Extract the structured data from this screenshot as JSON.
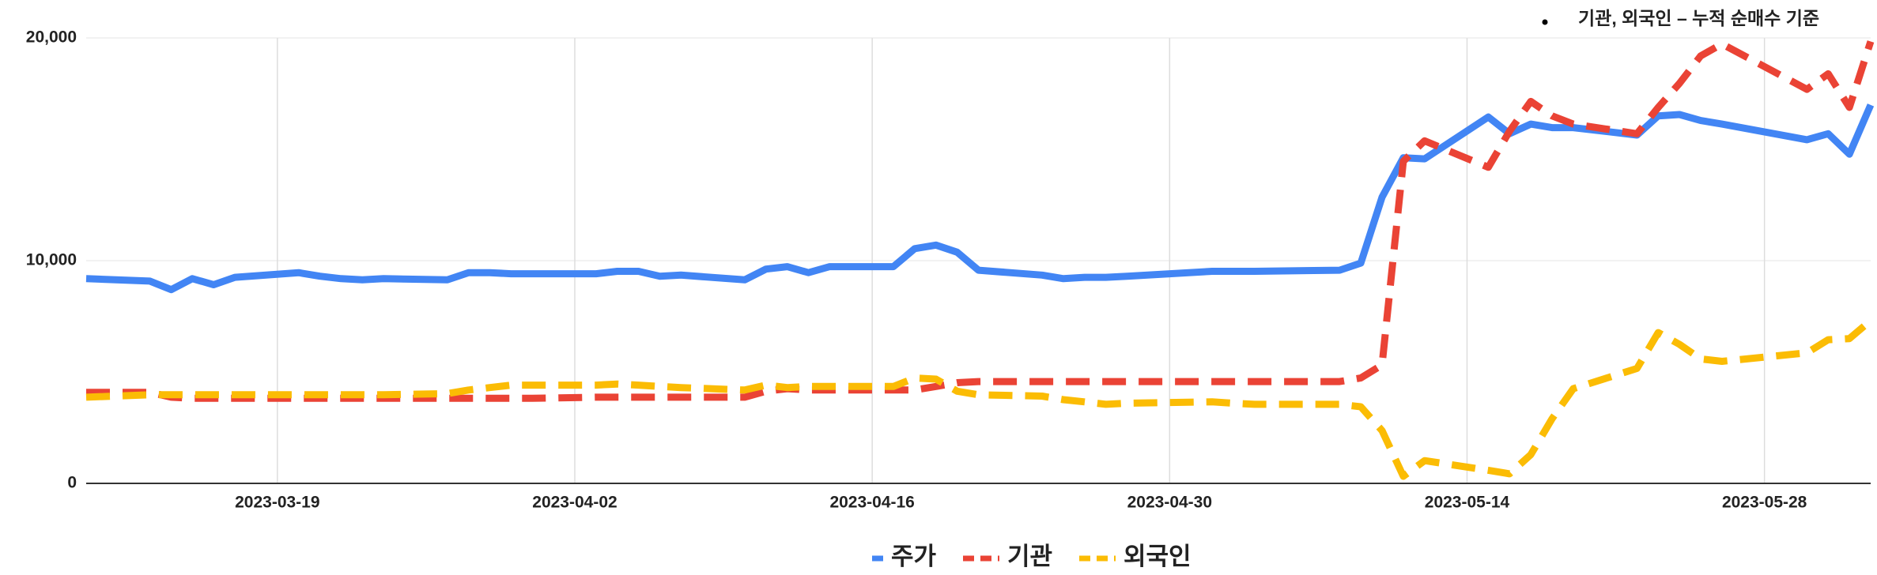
{
  "chart_data": {
    "type": "line",
    "note": "기관, 외국인 – 누적 순매수 기준",
    "x": [
      "2023-03-10",
      "2023-03-13",
      "2023-03-14",
      "2023-03-15",
      "2023-03-16",
      "2023-03-17",
      "2023-03-20",
      "2023-03-21",
      "2023-03-22",
      "2023-03-23",
      "2023-03-24",
      "2023-03-27",
      "2023-03-28",
      "2023-03-29",
      "2023-03-30",
      "2023-03-31",
      "2023-04-03",
      "2023-04-04",
      "2023-04-05",
      "2023-04-06",
      "2023-04-07",
      "2023-04-10",
      "2023-04-11",
      "2023-04-12",
      "2023-04-13",
      "2023-04-14",
      "2023-04-17",
      "2023-04-18",
      "2023-04-19",
      "2023-04-20",
      "2023-04-21",
      "2023-04-24",
      "2023-04-25",
      "2023-04-26",
      "2023-04-27",
      "2023-04-28",
      "2023-05-02",
      "2023-05-03",
      "2023-05-04",
      "2023-05-08",
      "2023-05-09",
      "2023-05-10",
      "2023-05-11",
      "2023-05-12",
      "2023-05-15",
      "2023-05-16",
      "2023-05-17",
      "2023-05-18",
      "2023-05-19",
      "2023-05-22",
      "2023-05-23",
      "2023-05-24",
      "2023-05-25",
      "2023-05-26",
      "2023-05-30",
      "2023-05-31",
      "2023-06-01",
      "2023-06-02"
    ],
    "series": [
      {
        "name": "주가",
        "color": "#4285f4",
        "line_style": "solid",
        "values": [
          9190,
          9080,
          8700,
          9190,
          8920,
          9250,
          9460,
          9300,
          9190,
          9140,
          9190,
          9140,
          9460,
          9460,
          9410,
          9410,
          9410,
          9520,
          9520,
          9300,
          9350,
          9140,
          9620,
          9730,
          9460,
          9730,
          9730,
          10540,
          10700,
          10380,
          9570,
          9350,
          9190,
          9250,
          9250,
          9300,
          9520,
          9520,
          9520,
          9570,
          9890,
          12850,
          14620,
          14570,
          16450,
          15700,
          16130,
          15970,
          15970,
          15640,
          16500,
          16560,
          16290,
          16130,
          15430,
          15700,
          14780,
          16990
        ]
      },
      {
        "name": "기관",
        "color": "#ea4335",
        "line_style": "dashed",
        "values": [
          4090,
          4090,
          3870,
          3820,
          3820,
          3820,
          3820,
          3820,
          3820,
          3820,
          3820,
          3820,
          3820,
          3820,
          3820,
          3820,
          3870,
          3870,
          3870,
          3870,
          3870,
          3870,
          4140,
          4250,
          4190,
          4190,
          4190,
          4190,
          4350,
          4520,
          4570,
          4570,
          4570,
          4570,
          4570,
          4570,
          4570,
          4570,
          4570,
          4570,
          4730,
          5320,
          14460,
          15380,
          14190,
          15810,
          17150,
          16500,
          16130,
          15700,
          16880,
          17960,
          19190,
          19730,
          17690,
          18390,
          16880,
          19840
        ]
      },
      {
        "name": "외국인",
        "color": "#fbbc04",
        "line_style": "dashed",
        "values": [
          3870,
          3980,
          3980,
          3980,
          3980,
          3980,
          3980,
          3980,
          3980,
          3980,
          3980,
          4030,
          4190,
          4300,
          4410,
          4410,
          4410,
          4460,
          4410,
          4350,
          4300,
          4190,
          4410,
          4300,
          4350,
          4350,
          4350,
          4730,
          4680,
          4140,
          3980,
          3920,
          3760,
          3660,
          3550,
          3600,
          3660,
          3600,
          3550,
          3550,
          3440,
          2370,
          320,
          1020,
          590,
          430,
          1290,
          2900,
          4250,
          5160,
          6770,
          6240,
          5590,
          5480,
          5860,
          6450,
          6500,
          7310
        ]
      }
    ],
    "xlim": [
      "2023-03-10",
      "2023-06-02"
    ],
    "xticks": [
      "2023-03-19",
      "2023-04-02",
      "2023-04-16",
      "2023-04-30",
      "2023-05-14",
      "2023-05-28"
    ],
    "ylim": [
      0,
      20000
    ],
    "yticks": [
      0,
      {
        "value": 10000,
        "label": "10,000"
      },
      {
        "value": 20000,
        "label": "20,000"
      }
    ],
    "grid": true,
    "legend": "bottom"
  }
}
